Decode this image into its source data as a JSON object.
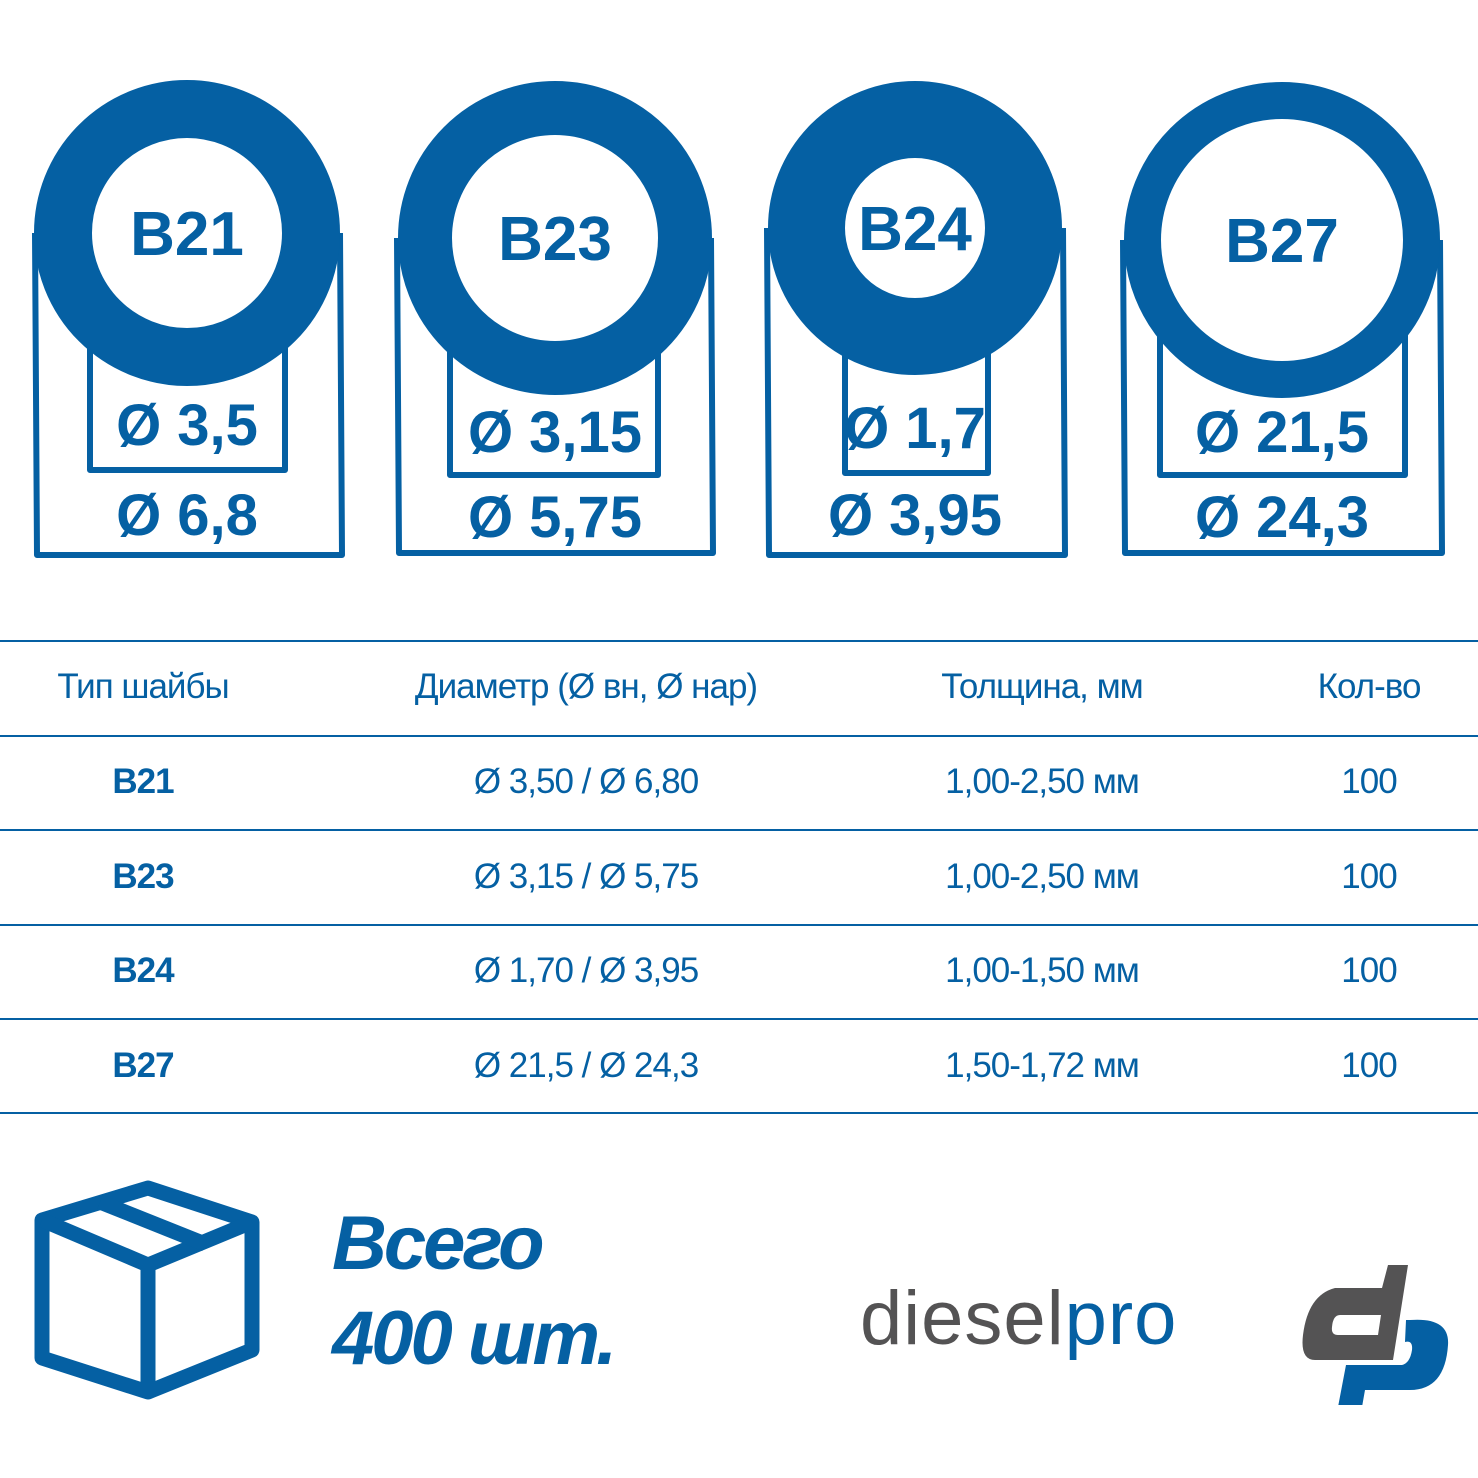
{
  "colors": {
    "accent": "#0560a3",
    "logo_gray": "#545354"
  },
  "washers": [
    {
      "type": "B21",
      "inner": "Ø 3,5",
      "outer": "Ø 6,8"
    },
    {
      "type": "B23",
      "inner": "Ø 3,15",
      "outer": "Ø 5,75"
    },
    {
      "type": "B24",
      "inner": "Ø 1,7",
      "outer": "Ø 3,95"
    },
    {
      "type": "B27",
      "inner": "Ø 21,5",
      "outer": "Ø 24,3"
    }
  ],
  "table": {
    "headers": [
      "Тип шайбы",
      "Диаметр (Ø вн, Ø нар)",
      "Толщина, мм",
      "Кол-во"
    ],
    "rows": [
      [
        "B21",
        "Ø 3,50 / Ø 6,80",
        "1,00-2,50 мм",
        "100"
      ],
      [
        "B23",
        "Ø 3,15 / Ø 5,75",
        "1,00-2,50 мм",
        "100"
      ],
      [
        "B24",
        "Ø 1,70 / Ø 3,95",
        "1,00-1,50 мм",
        "100"
      ],
      [
        "B27",
        "Ø 21,5 / Ø 24,3",
        "1,50-1,72 мм",
        "100"
      ]
    ]
  },
  "total": {
    "line1": "Всего",
    "line2": "400 шт.",
    "icon": "box-icon"
  },
  "logo": {
    "text_part1": "diesel",
    "text_part2": "pro",
    "mark": "dp"
  }
}
